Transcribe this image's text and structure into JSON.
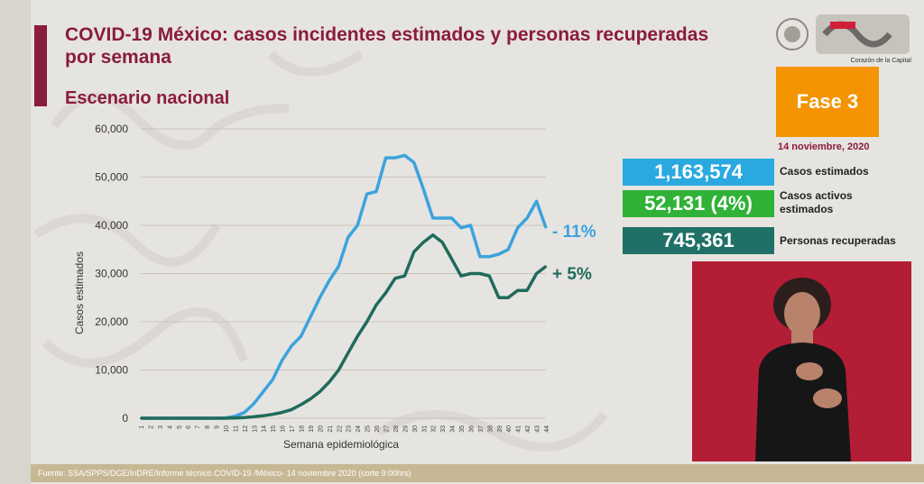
{
  "title": "COVID-19 México: casos incidentes estimados y personas recuperadas por semana",
  "subtitle": "Escenario nacional",
  "logo_caption": "Corazón de la Capital",
  "phase": "Fase 3",
  "date": "14 noviembre, 2020",
  "stats": [
    {
      "value": "1,163,574",
      "label": "Casos estimados",
      "color": "#29a9e0"
    },
    {
      "value": "52,131 (4%)",
      "label": "Casos activos estimados",
      "color": "#2fb236"
    },
    {
      "value": "745,361",
      "label": "Personas recuperadas",
      "color": "#1f7066"
    }
  ],
  "footer": "Fuente: SSA/SPPS/DGE/InDRE/Informe técnico.COVID-19 /México- 14 noviembre 2020 (corte 9:00hrs)",
  "chart_data": {
    "type": "line",
    "xlabel": "Semana epidemiológica",
    "ylabel": "Casos estimados",
    "ylim": [
      0,
      60000
    ],
    "yticks": [
      "0",
      "10,000",
      "20,000",
      "30,000",
      "40,000",
      "50,000",
      "60,000"
    ],
    "x": [
      1,
      2,
      3,
      4,
      5,
      6,
      7,
      8,
      9,
      10,
      11,
      12,
      13,
      14,
      15,
      16,
      17,
      18,
      19,
      20,
      21,
      22,
      23,
      24,
      25,
      26,
      27,
      28,
      29,
      30,
      31,
      32,
      33,
      34,
      35,
      36,
      37,
      38,
      39,
      40,
      41,
      42,
      43,
      44
    ],
    "series": [
      {
        "color": "#3ba3dd",
        "change_label": "- 11%",
        "values": [
          0,
          0,
          0,
          0,
          0,
          0,
          0,
          0,
          0,
          50,
          400,
          1200,
          3000,
          5500,
          8000,
          12000,
          15000,
          17000,
          21000,
          25000,
          28500,
          31500,
          37500,
          40000,
          46500,
          47000,
          54000,
          54000,
          54500,
          53000,
          47500,
          41500,
          41500,
          41500,
          39500,
          40000,
          33500,
          33500,
          34000,
          35000,
          39500,
          41500,
          45000,
          39500
        ]
      },
      {
        "color": "#1f6b5b",
        "change_label": "+ 5%",
        "values": [
          0,
          0,
          0,
          0,
          0,
          0,
          0,
          0,
          0,
          0,
          50,
          150,
          300,
          500,
          800,
          1200,
          1800,
          2800,
          4000,
          5500,
          7500,
          10000,
          13500,
          17000,
          20000,
          23500,
          26000,
          29000,
          29500,
          34500,
          36500,
          38000,
          36500,
          33000,
          29500,
          30000,
          30000,
          29500,
          25000,
          25000,
          26500,
          26500,
          30000,
          31500
        ]
      }
    ]
  }
}
